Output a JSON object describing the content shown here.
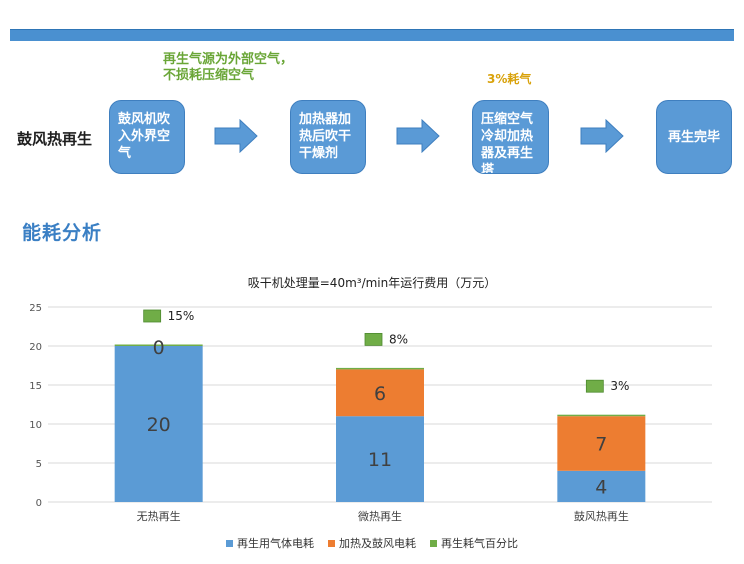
{
  "flow": {
    "row_label": "鼓风热再生",
    "note_top": [
      "再生气源为外部空气，",
      "不损耗压缩空气"
    ],
    "note_right": "3%耗气",
    "steps": [
      [
        "鼓风机吹",
        "入外界空",
        "气"
      ],
      [
        "加热器加",
        "热后吹干",
        "干燥剂"
      ],
      [
        "压缩空气",
        "冷却加热",
        "器及再生",
        "塔"
      ],
      [
        "再生完毕"
      ]
    ]
  },
  "section_title": "能耗分析",
  "colors": {
    "accent_blue": "#5b9bd5",
    "orange": "#ed7d31",
    "green": "#70ad47"
  },
  "chart_data": {
    "type": "bar",
    "stacked": true,
    "title": "吸干机处理量=40m³/min年运行费用（万元）",
    "categories": [
      "无热再生",
      "微热再生",
      "鼓风热再生"
    ],
    "series": [
      {
        "name": "再生用气体电耗",
        "color": "#5b9bd5",
        "values": [
          20,
          11,
          4
        ]
      },
      {
        "name": "加热及鼓风电耗",
        "color": "#ed7d31",
        "values": [
          0,
          6,
          7
        ]
      },
      {
        "name": "再生耗气百分比",
        "color": "#70ad47",
        "values": [
          "15%",
          "8%",
          "3%"
        ]
      }
    ],
    "data_labels": [
      [
        "20",
        "0"
      ],
      [
        "11",
        "6"
      ],
      [
        "4",
        "7"
      ]
    ],
    "ylim": [
      0,
      25
    ],
    "yticks": [
      0,
      5,
      10,
      15,
      20,
      25
    ],
    "grid": true,
    "legend": "bottom"
  }
}
